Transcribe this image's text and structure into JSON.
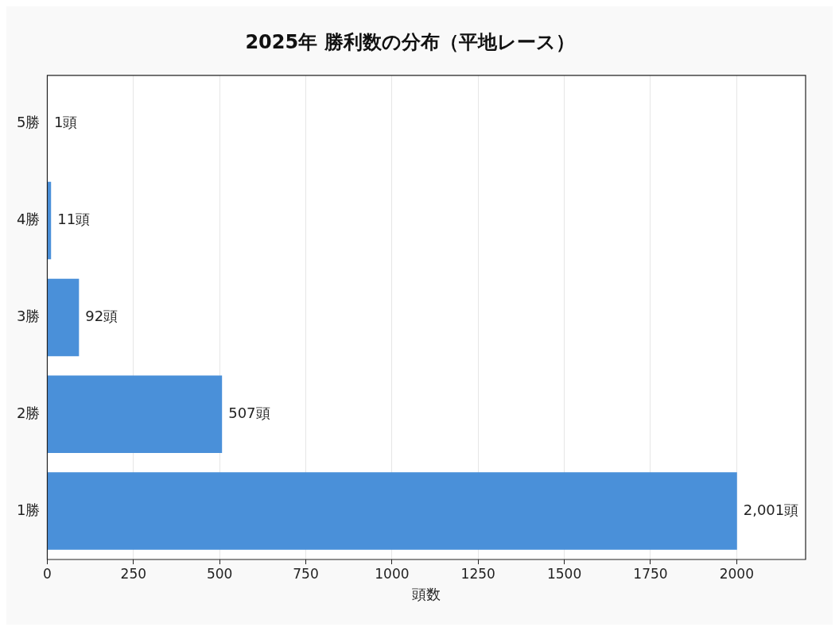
{
  "chart_data": {
    "type": "bar",
    "orientation": "horizontal",
    "title": "2025年 勝利数の分布（平地レース）",
    "xlabel": "頭数",
    "categories": [
      "5勝",
      "4勝",
      "3勝",
      "2勝",
      "1勝"
    ],
    "values": [
      1,
      11,
      92,
      507,
      2001
    ],
    "value_labels": [
      "1頭",
      "11頭",
      "92頭",
      "507頭",
      "2,001頭"
    ],
    "color": "#4a90d9",
    "xlim": [
      0,
      2200
    ],
    "xticks": [
      0,
      250,
      500,
      750,
      1000,
      1250,
      1500,
      1750,
      2000
    ],
    "grid": "x"
  }
}
